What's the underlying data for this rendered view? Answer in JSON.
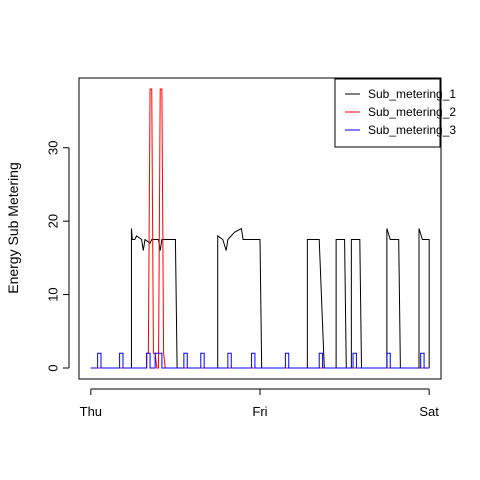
{
  "chart_data": {
    "type": "line",
    "title": "",
    "xlabel": "",
    "ylabel": "Energy Sub Metering",
    "x_tick_labels": [
      "Thu",
      "Fri",
      "Sat"
    ],
    "x_ticks": [
      0,
      1,
      2
    ],
    "xlim": [
      -0.07,
      2.07
    ],
    "y_ticks": [
      0,
      10,
      20,
      30
    ],
    "ylim": [
      -1.5,
      39.5
    ],
    "grid": false,
    "legend_position": "top-right",
    "series": [
      {
        "name": "Sub_metering_1",
        "color": "#000000",
        "points": [
          [
            0,
            0
          ],
          [
            0.24,
            0
          ],
          [
            0.24,
            19
          ],
          [
            0.245,
            17.5
          ],
          [
            0.26,
            17.5
          ],
          [
            0.27,
            18
          ],
          [
            0.3,
            17.5
          ],
          [
            0.31,
            16
          ],
          [
            0.32,
            17.5
          ],
          [
            0.35,
            17
          ],
          [
            0.36,
            17.5
          ],
          [
            0.4,
            17.5
          ],
          [
            0.41,
            16
          ],
          [
            0.42,
            17.5
          ],
          [
            0.5,
            17.5
          ],
          [
            0.51,
            0
          ],
          [
            0.75,
            0
          ],
          [
            0.75,
            18
          ],
          [
            0.78,
            17.5
          ],
          [
            0.8,
            16
          ],
          [
            0.81,
            17.5
          ],
          [
            0.85,
            18.5
          ],
          [
            0.89,
            19
          ],
          [
            0.9,
            17.5
          ],
          [
            1.0,
            17.5
          ],
          [
            1.01,
            0
          ],
          [
            1.28,
            0
          ],
          [
            1.28,
            17.5
          ],
          [
            1.35,
            17.5
          ],
          [
            1.38,
            0
          ],
          [
            1.45,
            0
          ],
          [
            1.45,
            17.5
          ],
          [
            1.5,
            17.5
          ],
          [
            1.51,
            0
          ],
          [
            1.54,
            0
          ],
          [
            1.54,
            17.5
          ],
          [
            1.59,
            17.5
          ],
          [
            1.6,
            0
          ],
          [
            1.75,
            0
          ],
          [
            1.75,
            19
          ],
          [
            1.77,
            17.5
          ],
          [
            1.82,
            17.5
          ],
          [
            1.83,
            0
          ],
          [
            1.94,
            0
          ],
          [
            1.94,
            19
          ],
          [
            1.96,
            17.5
          ],
          [
            2.0,
            17.5
          ],
          [
            2.0,
            0
          ]
        ]
      },
      {
        "name": "Sub_metering_2",
        "color": "#ff0000",
        "points": [
          [
            0,
            0
          ],
          [
            0.33,
            0
          ],
          [
            0.33,
            2
          ],
          [
            0.34,
            2
          ],
          [
            0.35,
            38
          ],
          [
            0.36,
            38
          ],
          [
            0.37,
            2
          ],
          [
            0.38,
            2
          ],
          [
            0.39,
            0
          ],
          [
            0.4,
            0
          ],
          [
            0.41,
            38
          ],
          [
            0.42,
            38
          ],
          [
            0.43,
            2
          ],
          [
            0.44,
            0
          ],
          [
            2.0,
            0
          ]
        ]
      },
      {
        "name": "Sub_metering_3",
        "color": "#0000ff",
        "points": [
          [
            0,
            0
          ],
          [
            0.04,
            0
          ],
          [
            0.04,
            2
          ],
          [
            0.06,
            2
          ],
          [
            0.06,
            0
          ],
          [
            0.17,
            0
          ],
          [
            0.17,
            2
          ],
          [
            0.19,
            2
          ],
          [
            0.19,
            0
          ],
          [
            0.33,
            0
          ],
          [
            0.33,
            2
          ],
          [
            0.35,
            2
          ],
          [
            0.35,
            0
          ],
          [
            0.38,
            0
          ],
          [
            0.38,
            2
          ],
          [
            0.42,
            2
          ],
          [
            0.42,
            0
          ],
          [
            0.55,
            0
          ],
          [
            0.55,
            2
          ],
          [
            0.57,
            2
          ],
          [
            0.57,
            0
          ],
          [
            0.65,
            0
          ],
          [
            0.65,
            2
          ],
          [
            0.67,
            2
          ],
          [
            0.67,
            0
          ],
          [
            0.81,
            0
          ],
          [
            0.81,
            2
          ],
          [
            0.83,
            2
          ],
          [
            0.83,
            0
          ],
          [
            0.95,
            0
          ],
          [
            0.95,
            2
          ],
          [
            0.97,
            2
          ],
          [
            0.97,
            0
          ],
          [
            1.15,
            0
          ],
          [
            1.15,
            2
          ],
          [
            1.17,
            2
          ],
          [
            1.17,
            0
          ],
          [
            1.35,
            0
          ],
          [
            1.35,
            2
          ],
          [
            1.37,
            2
          ],
          [
            1.37,
            0
          ],
          [
            1.55,
            0
          ],
          [
            1.55,
            2
          ],
          [
            1.57,
            2
          ],
          [
            1.57,
            0
          ],
          [
            1.75,
            0
          ],
          [
            1.75,
            2
          ],
          [
            1.77,
            2
          ],
          [
            1.77,
            0
          ],
          [
            1.95,
            0
          ],
          [
            1.95,
            2
          ],
          [
            1.97,
            2
          ],
          [
            1.97,
            0
          ],
          [
            2.0,
            0
          ]
        ]
      }
    ]
  }
}
